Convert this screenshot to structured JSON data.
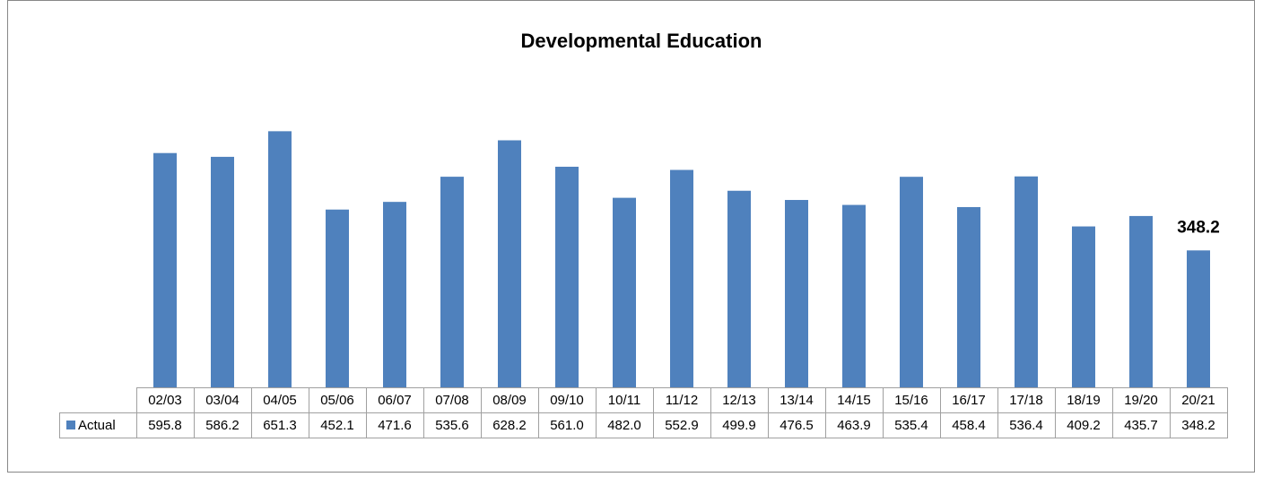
{
  "chart_data": {
    "type": "bar",
    "title": "Developmental Education",
    "categories": [
      "02/03",
      "03/04",
      "04/05",
      "05/06",
      "06/07",
      "07/08",
      "08/09",
      "09/10",
      "10/11",
      "11/12",
      "12/13",
      "13/14",
      "14/15",
      "15/16",
      "16/17",
      "17/18",
      "18/19",
      "19/20",
      "20/21"
    ],
    "series": [
      {
        "name": "Actual",
        "color": "#4f81bd",
        "values": [
          595.8,
          586.2,
          651.3,
          452.1,
          471.6,
          535.6,
          628.2,
          561.0,
          482.0,
          552.9,
          499.9,
          476.5,
          463.9,
          535.4,
          458.4,
          536.4,
          409.2,
          435.7,
          348.2
        ],
        "value_labels": [
          "595.8",
          "586.2",
          "651.3",
          "452.1",
          "471.6",
          "535.6",
          "628.2",
          "561.0",
          "482.0",
          "552.9",
          "499.9",
          "476.5",
          "463.9",
          "535.4",
          "458.4",
          "536.4",
          "409.2",
          "435.7",
          "348.2"
        ]
      }
    ],
    "ylim": [
      0,
      700
    ]
  }
}
